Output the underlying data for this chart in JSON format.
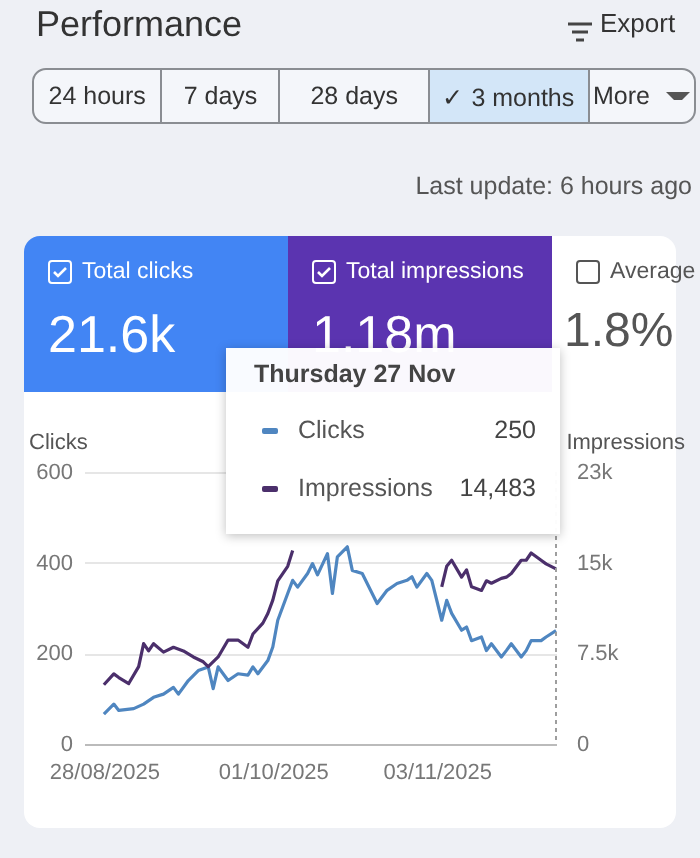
{
  "chart_data": [
    {
      "type": "other",
      "title": "Performance",
      "annotations": [
        "Export",
        "24 hours",
        "7 days",
        "28 days",
        "✓ 3 months",
        "More",
        "Last update: 6 hours ago",
        "Total clicks",
        "21.6k",
        "Total impressions",
        "1.18m",
        "Average",
        "1.8%"
      ]
    },
    {
      "type": "line",
      "ylabel": "Clicks",
      "y2label": "Impressions",
      "xlim": [
        "2025-08-24",
        "2025-11-27"
      ],
      "xticks": [
        {
          "value": "2025-08-28",
          "label": "28/08/2025"
        },
        {
          "value": "2025-10-01",
          "label": "01/10/2025"
        },
        {
          "value": "2025-11-03",
          "label": "03/11/2025"
        }
      ],
      "ylim": [
        0,
        600
      ],
      "yticks": [
        0,
        200,
        400,
        600
      ],
      "y2lim": [
        0,
        22500
      ],
      "y2ticks": [
        0,
        {
          "value": 7500,
          "label": "7.5k"
        },
        {
          "value": 15000,
          "label": "15k"
        },
        {
          "value": 22500,
          "label": "23k"
        }
      ],
      "grid": "y",
      "legend": "top",
      "series": [
        {
          "name": "Clicks",
          "color": "#4f86c0",
          "x": [
            "2025-08-28",
            "2025-08-30",
            "2025-08-31",
            "2025-09-03",
            "2025-09-05",
            "2025-09-07",
            "2025-09-09",
            "2025-09-11",
            "2025-09-12",
            "2025-09-14",
            "2025-09-16",
            "2025-09-18",
            "2025-09-19",
            "2025-09-20",
            "2025-09-22",
            "2025-09-24",
            "2025-09-26",
            "2025-09-27",
            "2025-09-28",
            "2025-09-30",
            "2025-10-01",
            "2025-10-02",
            "2025-10-04",
            "2025-10-05",
            "2025-10-06",
            "2025-10-08",
            "2025-10-09",
            "2025-10-10",
            "2025-10-12",
            "2025-10-13",
            "2025-10-14",
            "2025-10-16",
            "2025-10-17",
            "2025-10-19",
            "2025-10-21",
            "2025-10-22",
            "2025-10-24",
            "2025-10-26",
            "2025-10-28",
            "2025-10-29",
            "2025-10-30",
            "2025-11-01",
            "2025-11-02",
            "2025-11-04",
            "2025-11-05",
            "2025-11-06",
            "2025-11-08",
            "2025-11-09",
            "2025-11-10",
            "2025-11-12",
            "2025-11-13",
            "2025-11-14",
            "2025-11-16",
            "2025-11-17",
            "2025-11-18",
            "2025-11-20",
            "2025-11-21",
            "2025-11-22",
            "2025-11-24",
            "2025-11-25",
            "2025-11-27"
          ],
          "values": [
            66,
            88,
            74,
            78,
            88,
            103,
            110,
            125,
            110,
            140,
            162,
            170,
            122,
            170,
            140,
            155,
            152,
            170,
            155,
            184,
            214,
            273,
            332,
            361,
            346,
            376,
            398,
            373,
            420,
            332,
            413,
            435,
            383,
            376,
            332,
            310,
            339,
            354,
            361,
            369,
            346,
            376,
            361,
            273,
            317,
            288,
            251,
            258,
            228,
            236,
            206,
            221,
            192,
            206,
            221,
            192,
            206,
            228,
            228,
            236,
            250
          ]
        },
        {
          "name": "Impressions",
          "color": "#4b2f6b",
          "axis": "y2",
          "x": [
            "2025-08-28",
            "2025-08-30",
            "2025-08-31",
            "2025-09-02",
            "2025-09-04",
            "2025-09-05",
            "2025-09-06",
            "2025-09-07",
            "2025-09-09",
            "2025-09-11",
            "2025-09-13",
            "2025-09-15",
            "2025-09-17",
            "2025-09-18",
            "2025-09-20",
            "2025-09-22",
            "2025-09-24",
            "2025-09-26",
            "2025-09-27",
            "2025-09-29",
            "2025-09-30",
            "2025-10-01",
            "2025-10-02",
            "2025-10-04",
            "2025-10-05",
            "2025-10-17",
            "2025-11-04",
            "2025-11-05",
            "2025-11-06",
            "2025-11-08",
            "2025-11-09",
            "2025-11-10",
            "2025-11-12",
            "2025-11-13",
            "2025-11-14",
            "2025-11-16",
            "2025-11-17",
            "2025-11-18",
            "2025-11-20",
            "2025-11-21",
            "2025-11-22",
            "2025-11-24",
            "2025-11-25",
            "2025-11-27"
          ],
          "values": [
            4900,
            5800,
            5500,
            5000,
            6400,
            8300,
            7700,
            8300,
            7600,
            8000,
            7700,
            7200,
            6800,
            6400,
            7200,
            8600,
            8600,
            8000,
            9100,
            10000,
            10800,
            11900,
            13500,
            14700,
            16000,
            null,
            13000,
            14700,
            15200,
            13800,
            14400,
            13000,
            12700,
            13500,
            13300,
            13700,
            13800,
            14100,
            15200,
            15200,
            15800,
            15200,
            14900,
            14483
          ]
        }
      ],
      "ref_lines": [
        {
          "axis": "x",
          "value": "2025-11-27",
          "color": "#9e9e9e",
          "line_style": "dotted"
        }
      ],
      "annotations": [
        "Thursday 27 Nov",
        "250",
        "14,483"
      ]
    }
  ]
}
